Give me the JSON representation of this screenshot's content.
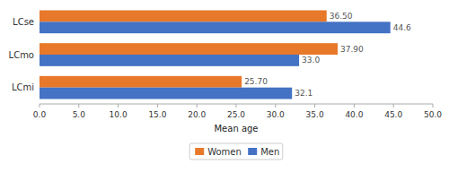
{
  "chart_data": {
    "type": "bar",
    "orientation": "horizontal",
    "categories": [
      "LCmi",
      "LCmo",
      "LCse"
    ],
    "series": [
      {
        "name": "Women",
        "color": "#E8782A",
        "values": [
          25.7,
          37.9,
          36.5
        ],
        "value_labels": [
          "25.70",
          "37.90",
          "36.50"
        ]
      },
      {
        "name": "Men",
        "color": "#4472C4",
        "values": [
          32.1,
          33.0,
          44.6
        ],
        "value_labels": [
          "32.1",
          "33.0",
          "44.6"
        ]
      }
    ],
    "xlabel": "Mean age",
    "xlim": [
      0,
      50
    ],
    "xticks": [
      {
        "value": 0.0,
        "label": "0.0"
      },
      {
        "value": 5.0,
        "label": "5.0"
      },
      {
        "value": 10.0,
        "label": "10.0"
      },
      {
        "value": 15.0,
        "label": "15.0"
      },
      {
        "value": 20.0,
        "label": "20.0"
      },
      {
        "value": 25.0,
        "label": "25.0"
      },
      {
        "value": 30.0,
        "label": "30.0"
      },
      {
        "value": 35.0,
        "label": "35.0"
      },
      {
        "value": 40.0,
        "label": "40.0"
      },
      {
        "value": 45.0,
        "label": "45.0"
      },
      {
        "value": 50.0,
        "label": "50.0"
      }
    ],
    "data_labels": true,
    "legend": "bottom"
  }
}
